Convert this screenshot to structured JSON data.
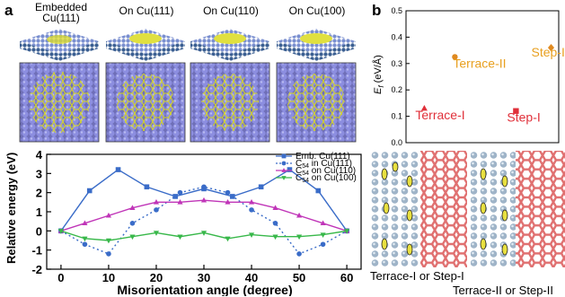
{
  "panel_a": {
    "letter": "a",
    "titles": [
      "Embedded Cu(111)",
      "On Cu(111)",
      "On Cu(110)",
      "On Cu(100)"
    ],
    "title_line1": "Embedded",
    "title_line2": "Cu(111)"
  },
  "panel_b": {
    "letter": "b"
  },
  "chart_data": [
    {
      "type": "scatter",
      "ylabel": "Ef (eV/Å)",
      "ylabel_main": "E",
      "ylabel_sub": "f",
      "ylabel_unit": " (eV/Å)",
      "ylim": [
        0,
        0.5
      ],
      "yticks": [
        "0.0",
        "0.1",
        "0.2",
        "0.3",
        "0.4",
        "0.5"
      ],
      "points": [
        {
          "label": "Terrace-I",
          "y": 0.13,
          "color": "#e0303a",
          "marker": "triangle"
        },
        {
          "label": "Terrace-II",
          "y": 0.325,
          "color": "#e08a20",
          "marker": "circle"
        },
        {
          "label": "Step-I",
          "y": 0.12,
          "color": "#e0303a",
          "marker": "square"
        },
        {
          "label": "Step-II",
          "y": 0.36,
          "color": "#e08a20",
          "marker": "diamond"
        }
      ],
      "label_colors": {
        "Terrace-I": "#e0303a",
        "Terrace-II": "#e8a020",
        "Step-I": "#e0303a",
        "Step-II": "#e8a020"
      }
    },
    {
      "type": "line",
      "xlabel": "Misorientation angle (degree)",
      "ylabel": "Relative energy (eV)",
      "xlim": [
        -3,
        63
      ],
      "ylim": [
        -2,
        4
      ],
      "xticks": [
        "0",
        "10",
        "20",
        "30",
        "40",
        "50",
        "60"
      ],
      "yticks": [
        "-2",
        "-1",
        "0",
        "1",
        "2",
        "3",
        "4"
      ],
      "grid": false,
      "legend_position": "top-right",
      "series": [
        {
          "name": "Emb. Cu(111)",
          "color": "#3a6cc8",
          "marker": "square",
          "dash": false,
          "x": [
            0,
            6,
            12,
            18,
            24,
            30,
            36,
            42,
            48,
            54,
            60
          ],
          "y": [
            0,
            2.1,
            3.2,
            2.3,
            1.8,
            2.2,
            1.8,
            2.3,
            3.2,
            2.1,
            0
          ]
        },
        {
          "name": "C54 in Cu(111)",
          "name_pre": "C",
          "name_sub": "54",
          "name_post": " in Cu(111)",
          "color": "#3a6cc8",
          "marker": "circle",
          "dash": true,
          "x": [
            0,
            5,
            10,
            15,
            20,
            25,
            30,
            35,
            40,
            45,
            50,
            55,
            60
          ],
          "y": [
            0,
            -0.7,
            -1.2,
            0.4,
            1.1,
            2.0,
            2.3,
            2.0,
            1.1,
            0.4,
            -1.2,
            -0.7,
            0
          ]
        },
        {
          "name": "C54 on Cu(110)",
          "name_pre": "C",
          "name_sub": "54",
          "name_post": " on Cu(110)",
          "color": "#c035b8",
          "marker": "triangle-up",
          "dash": false,
          "x": [
            0,
            5,
            10,
            15,
            20,
            25,
            30,
            35,
            40,
            45,
            50,
            55,
            60
          ],
          "y": [
            0,
            0.4,
            0.8,
            1.2,
            1.5,
            1.5,
            1.6,
            1.5,
            1.5,
            1.2,
            0.8,
            0.4,
            0
          ]
        },
        {
          "name": "C54 on Cu(100)",
          "name_pre": "C",
          "name_sub": "54",
          "name_post": " on Cu(100)",
          "color": "#38b84a",
          "marker": "triangle-down",
          "dash": false,
          "x": [
            0,
            5,
            10,
            15,
            20,
            25,
            30,
            35,
            40,
            45,
            50,
            55,
            60
          ],
          "y": [
            0,
            -0.4,
            -0.5,
            -0.3,
            -0.1,
            -0.3,
            -0.1,
            -0.4,
            -0.2,
            -0.3,
            -0.3,
            -0.2,
            0
          ]
        }
      ]
    }
  ],
  "bottom_right": {
    "caption1": "Terrace-I or Step-I",
    "caption2": "Terrace-II or Step-II"
  }
}
